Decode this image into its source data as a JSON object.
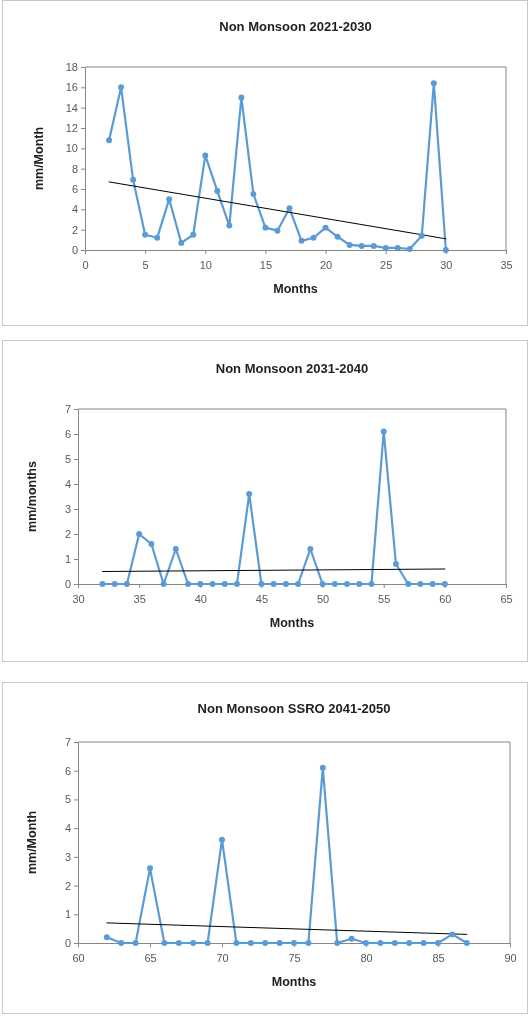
{
  "chart_data": [
    {
      "type": "line",
      "title": "Non Monsoon 2021-2030",
      "xlabel": "Months",
      "ylabel": "mm/Month",
      "xlim": [
        0,
        35
      ],
      "xticks": [
        0,
        5,
        10,
        15,
        20,
        25,
        30,
        35
      ],
      "ylim": [
        0,
        18
      ],
      "yticks": [
        0,
        2,
        4,
        6,
        8,
        10,
        12,
        14,
        16,
        18
      ],
      "marker": "circle",
      "x": [
        2,
        3,
        4,
        5,
        6,
        7,
        8,
        9,
        10,
        11,
        12,
        13,
        14,
        15,
        16,
        17,
        18,
        19,
        20,
        21,
        22,
        23,
        24,
        25,
        26,
        27,
        28,
        29,
        30
      ],
      "series": [
        {
          "color": "#5b9bd5",
          "values": [
            10.8,
            16.0,
            6.9,
            1.5,
            1.2,
            5.0,
            0.7,
            1.5,
            9.3,
            5.8,
            2.4,
            15.0,
            5.5,
            2.2,
            1.9,
            4.1,
            0.9,
            1.2,
            2.2,
            1.3,
            0.5,
            0.4,
            0.4,
            0.2,
            0.2,
            0.1,
            1.4,
            16.4,
            0
          ]
        },
        {
          "type": "line",
          "color": "#000000",
          "marker": "none",
          "x": [
            2,
            30
          ],
          "values": [
            6.7,
            1.1
          ]
        }
      ]
    },
    {
      "type": "line",
      "title": "Non Monsoon 2031-2040",
      "xlabel": "Months",
      "ylabel": "mm/months",
      "xlim": [
        30,
        65
      ],
      "xticks": [
        30,
        35,
        40,
        45,
        50,
        55,
        60,
        65
      ],
      "ylim": [
        0,
        7
      ],
      "yticks": [
        0,
        1,
        2,
        3,
        4,
        5,
        6,
        7
      ],
      "marker": "circle",
      "x": [
        32,
        33,
        34,
        35,
        36,
        37,
        38,
        39,
        40,
        41,
        42,
        43,
        44,
        45,
        46,
        47,
        48,
        49,
        50,
        51,
        52,
        53,
        54,
        55,
        56,
        57,
        58,
        59,
        60
      ],
      "series": [
        {
          "color": "#5b9bd5",
          "values": [
            0,
            0,
            0,
            2.0,
            1.6,
            0,
            1.4,
            0,
            0,
            0,
            0,
            0,
            3.6,
            0,
            0,
            0,
            0,
            1.4,
            0,
            0,
            0,
            0,
            0,
            6.1,
            0.8,
            0,
            0,
            0,
            0
          ]
        },
        {
          "type": "line",
          "color": "#000000",
          "marker": "none",
          "x": [
            32,
            60
          ],
          "values": [
            0.5,
            0.6
          ]
        }
      ]
    },
    {
      "type": "line",
      "title": "Non Monsoon SSRO 2041-2050",
      "xlabel": "Months",
      "ylabel": "mm/Month",
      "xlim": [
        60,
        90
      ],
      "xticks": [
        60,
        65,
        70,
        75,
        80,
        85,
        90
      ],
      "ylim": [
        0,
        7
      ],
      "yticks": [
        0,
        1,
        2,
        3,
        4,
        5,
        6,
        7
      ],
      "marker": "circle",
      "x": [
        62,
        63,
        64,
        65,
        66,
        67,
        68,
        69,
        70,
        71,
        72,
        73,
        74,
        75,
        76,
        77,
        78,
        79,
        80,
        81,
        82,
        83,
        84,
        85,
        86,
        87
      ],
      "series": [
        {
          "color": "#5b9bd5",
          "values": [
            0.2,
            0,
            0,
            2.6,
            0,
            0,
            0,
            0,
            3.6,
            0,
            0,
            0,
            0,
            0,
            0,
            6.1,
            0,
            0.15,
            0,
            0,
            0,
            0,
            0,
            0,
            0.3,
            0
          ]
        },
        {
          "type": "line",
          "color": "#000000",
          "marker": "none",
          "x": [
            62,
            87
          ],
          "values": [
            0.7,
            0.3
          ]
        }
      ]
    }
  ]
}
